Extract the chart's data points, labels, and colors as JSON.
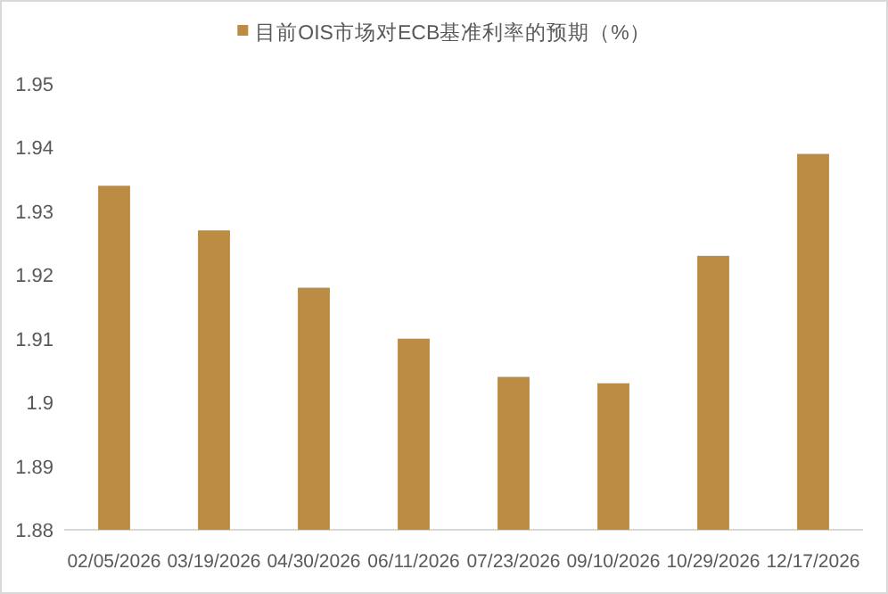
{
  "chart_data": {
    "type": "bar",
    "categories": [
      "02/05/2026",
      "03/19/2026",
      "04/30/2026",
      "06/11/2026",
      "07/23/2026",
      "09/10/2026",
      "10/29/2026",
      "12/17/2026"
    ],
    "series": [
      {
        "name": "目前OIS市场对ECB基准利率的预期（%）",
        "color": "#bc8b44",
        "values": [
          1.934,
          1.927,
          1.918,
          1.91,
          1.904,
          1.903,
          1.923,
          1.939
        ]
      }
    ],
    "ylim": [
      1.88,
      1.95
    ],
    "yticks": [
      1.88,
      1.89,
      1.9,
      1.91,
      1.92,
      1.93,
      1.94,
      1.95
    ],
    "legend": "top",
    "grid": false
  }
}
